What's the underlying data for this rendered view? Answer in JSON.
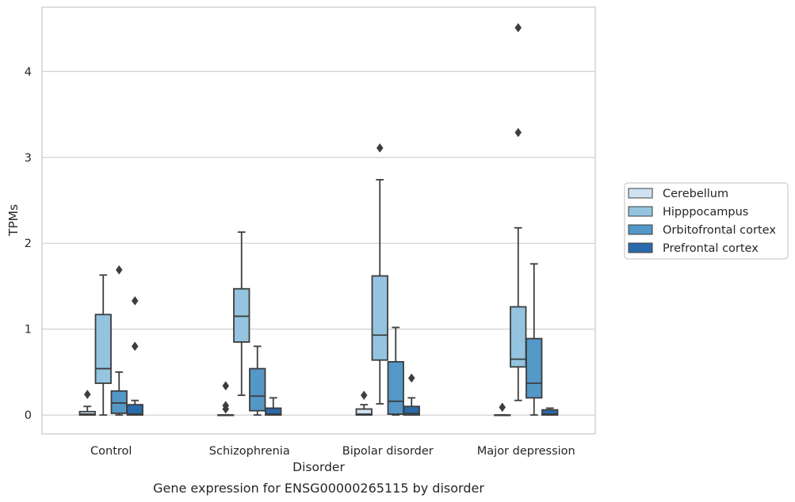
{
  "caption": "Gene expression for ENSG00000265115 by disorder",
  "chart_data": {
    "type": "box",
    "xlabel": "Disorder",
    "ylabel": "TPMs",
    "ylim": [
      -0.22,
      4.75
    ],
    "yticks": [
      0,
      1,
      2,
      3,
      4
    ],
    "grid": "horizontal",
    "legend_position": "right",
    "categories": [
      "Control",
      "Schizophrenia",
      "Bipolar disorder",
      "Major depression"
    ],
    "series": [
      {
        "name": "Cerebellum",
        "color": "#d0e1f1",
        "boxes": [
          {
            "whisker_low": 0,
            "q1": 0,
            "median": 0.01,
            "q3": 0.04,
            "whisker_high": 0.1,
            "outliers": [
              0.24
            ]
          },
          {
            "whisker_low": 0,
            "q1": 0,
            "median": 0,
            "q3": 0,
            "whisker_high": 0,
            "outliers": [
              0.34,
              0.11,
              0.07
            ]
          },
          {
            "whisker_low": 0,
            "q1": 0,
            "median": 0.01,
            "q3": 0.07,
            "whisker_high": 0.12,
            "outliers": [
              0.23
            ]
          },
          {
            "whisker_low": 0,
            "q1": 0,
            "median": 0,
            "q3": 0,
            "whisker_high": 0,
            "outliers": [
              0.09
            ]
          }
        ]
      },
      {
        "name": "Hipppocampus",
        "color": "#94c4df",
        "boxes": [
          {
            "whisker_low": 0,
            "q1": 0.37,
            "median": 0.54,
            "q3": 1.17,
            "whisker_high": 1.63,
            "outliers": []
          },
          {
            "whisker_low": 0.23,
            "q1": 0.85,
            "median": 1.15,
            "q3": 1.47,
            "whisker_high": 2.13,
            "outliers": []
          },
          {
            "whisker_low": 0.13,
            "q1": 0.64,
            "median": 0.93,
            "q3": 1.62,
            "whisker_high": 2.74,
            "outliers": [
              3.11
            ]
          },
          {
            "whisker_low": 0.17,
            "q1": 0.56,
            "median": 0.65,
            "q3": 1.26,
            "whisker_high": 2.18,
            "outliers": [
              4.51,
              3.29
            ]
          }
        ]
      },
      {
        "name": "Orbitofrontal cortex",
        "color": "#5498c8",
        "boxes": [
          {
            "whisker_low": 0,
            "q1": 0.02,
            "median": 0.14,
            "q3": 0.28,
            "whisker_high": 0.5,
            "outliers": [
              1.69
            ]
          },
          {
            "whisker_low": 0,
            "q1": 0.05,
            "median": 0.22,
            "q3": 0.54,
            "whisker_high": 0.8,
            "outliers": []
          },
          {
            "whisker_low": 0,
            "q1": 0.01,
            "median": 0.16,
            "q3": 0.62,
            "whisker_high": 1.02,
            "outliers": []
          },
          {
            "whisker_low": 0,
            "q1": 0.2,
            "median": 0.37,
            "q3": 0.89,
            "whisker_high": 1.76,
            "outliers": []
          }
        ]
      },
      {
        "name": "Prefrontal cortex",
        "color": "#2a6aab",
        "boxes": [
          {
            "whisker_low": 0,
            "q1": 0,
            "median": 0.01,
            "q3": 0.12,
            "whisker_high": 0.17,
            "outliers": [
              1.33,
              0.8
            ]
          },
          {
            "whisker_low": 0,
            "q1": 0,
            "median": 0.01,
            "q3": 0.08,
            "whisker_high": 0.2,
            "outliers": []
          },
          {
            "whisker_low": 0,
            "q1": 0,
            "median": 0.02,
            "q3": 0.1,
            "whisker_high": 0.2,
            "outliers": [
              0.43
            ]
          },
          {
            "whisker_low": 0,
            "q1": 0,
            "median": 0.01,
            "q3": 0.06,
            "whisker_high": 0.08,
            "outliers": []
          }
        ]
      }
    ]
  }
}
